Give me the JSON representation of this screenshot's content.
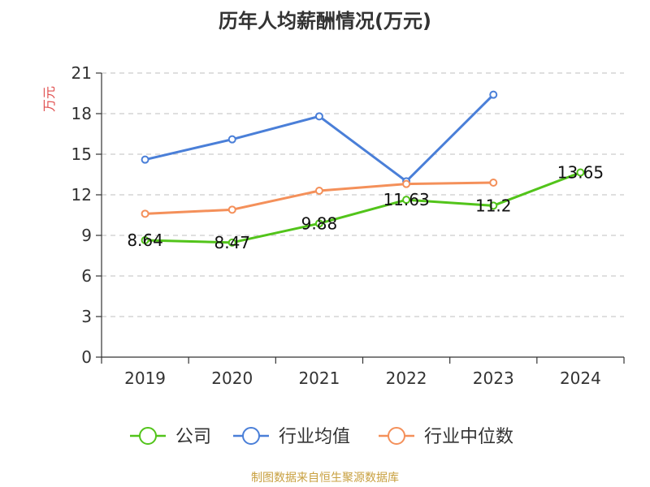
{
  "chart_data": {
    "type": "line",
    "title": "历年人均薪酬情况(万元)",
    "ylabel": "万元",
    "xlabel": "",
    "categories": [
      "2019",
      "2020",
      "2021",
      "2022",
      "2023",
      "2024"
    ],
    "ylim": [
      0,
      21
    ],
    "yticks": [
      0,
      3,
      6,
      9,
      12,
      15,
      18,
      21
    ],
    "grid": true,
    "legend_position": "bottom",
    "series": [
      {
        "name": "公司",
        "color": "#52c41a",
        "values": [
          8.64,
          8.47,
          9.88,
          11.63,
          11.2,
          13.65
        ],
        "labels": [
          "8.64",
          "8.47",
          "9.88",
          "11.63",
          "11.2",
          "13.65"
        ]
      },
      {
        "name": "行业均值",
        "color": "#4a7fd8",
        "values": [
          14.6,
          16.1,
          17.8,
          13.0,
          19.4,
          null
        ]
      },
      {
        "name": "行业中位数",
        "color": "#f4905a",
        "values": [
          10.6,
          10.9,
          12.3,
          12.8,
          12.9,
          null
        ]
      }
    ]
  },
  "footer": {
    "source": "制图数据来自恒生聚源数据库"
  }
}
